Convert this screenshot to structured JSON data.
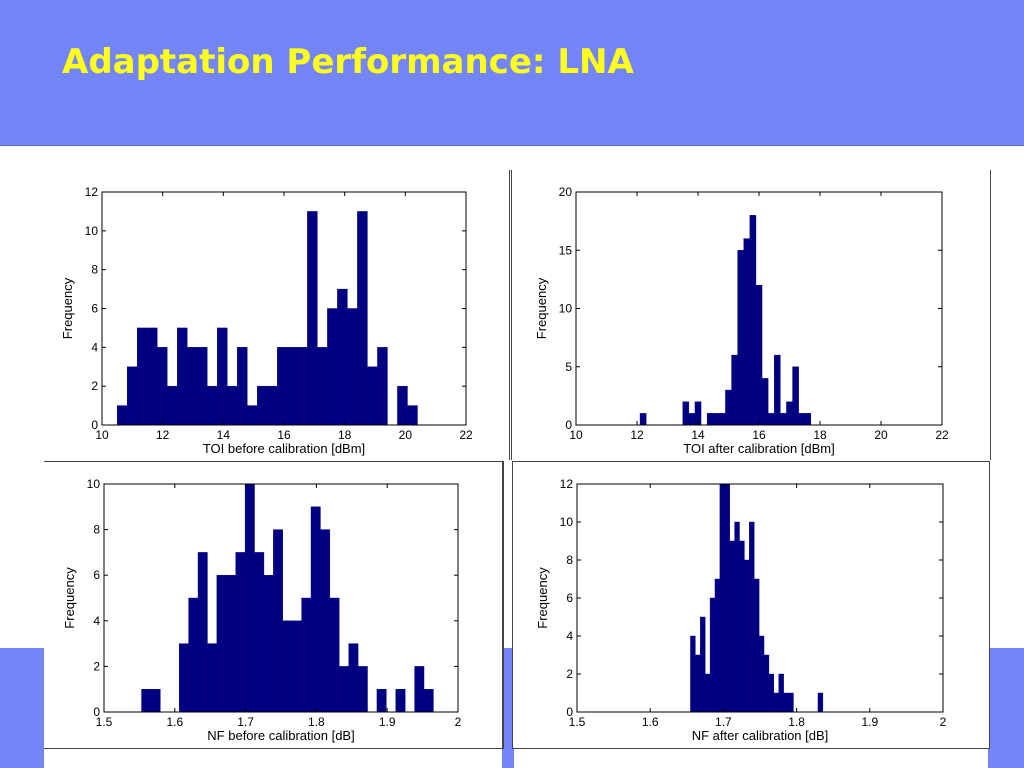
{
  "slide": {
    "title": "Adaptation Performance: LNA",
    "header_color": "#7485f7",
    "title_color": "#ffff1e",
    "bar_color": "#000080"
  },
  "chart_data": [
    {
      "type": "bar",
      "title": "",
      "xlabel": "TOI before calibration [dBm]",
      "ylabel": "Frequency",
      "xlim": [
        10,
        22
      ],
      "ylim": [
        0,
        12
      ],
      "xticks": [
        "10",
        "12",
        "14",
        "16",
        "18",
        "20",
        "22"
      ],
      "yticks": [
        "0",
        "2",
        "4",
        "6",
        "8",
        "10",
        "12"
      ],
      "bin_width": 0.33,
      "bin_start": 10.5,
      "values": [
        1,
        3,
        5,
        5,
        4,
        2,
        5,
        4,
        4,
        2,
        5,
        2,
        4,
        1,
        2,
        2,
        4,
        4,
        4,
        11,
        4,
        6,
        7,
        6,
        11,
        3,
        4,
        0,
        2,
        1
      ]
    },
    {
      "type": "bar",
      "title": "",
      "xlabel": "TOI after calibration [dBm]",
      "ylabel": "Frequency",
      "xlim": [
        10,
        22
      ],
      "ylim": [
        0,
        20
      ],
      "xticks": [
        "10",
        "12",
        "14",
        "16",
        "18",
        "20",
        "22"
      ],
      "yticks": [
        "0",
        "5",
        "10",
        "15",
        "20"
      ],
      "bin_width": 0.2,
      "bin_start": 12.1,
      "values": [
        1,
        0,
        0,
        0,
        0,
        0,
        0,
        2,
        1,
        2,
        0,
        1,
        1,
        1,
        3,
        6,
        15,
        16,
        18,
        12,
        4,
        1,
        6,
        1,
        2,
        5,
        1,
        1
      ]
    },
    {
      "type": "bar",
      "title": "",
      "xlabel": "NF before calibration [dB]",
      "ylabel": "Frequency",
      "xlim": [
        1.5,
        2
      ],
      "ylim": [
        0,
        10
      ],
      "xticks": [
        "1.5",
        "1.6",
        "1.7",
        "1.8",
        "1.9",
        "2"
      ],
      "yticks": [
        "0",
        "2",
        "4",
        "6",
        "8",
        "10"
      ],
      "bin_width": 0.0133,
      "bin_start": 1.553,
      "values": [
        1,
        1,
        0,
        0,
        3,
        5,
        7,
        3,
        6,
        6,
        7,
        10,
        7,
        6,
        8,
        4,
        4,
        5,
        9,
        8,
        5,
        2,
        3,
        2,
        0,
        1,
        0,
        1,
        0,
        2,
        1
      ]
    },
    {
      "type": "bar",
      "title": "",
      "xlabel": "NF after calibration [dB]",
      "ylabel": "Frequency",
      "xlim": [
        1.5,
        2
      ],
      "ylim": [
        0,
        12
      ],
      "xticks": [
        "1.5",
        "1.6",
        "1.7",
        "1.8",
        "1.9",
        "2"
      ],
      "yticks": [
        "0",
        "2",
        "4",
        "6",
        "8",
        "10",
        "12"
      ],
      "bin_width": 0.0067,
      "bin_start": 1.655,
      "values": [
        4,
        3,
        5,
        2,
        6,
        7,
        12,
        12,
        9,
        10,
        9,
        8,
        10,
        7,
        4,
        3,
        2,
        1,
        2,
        1,
        1,
        0,
        0,
        0,
        0,
        0,
        1
      ]
    }
  ]
}
